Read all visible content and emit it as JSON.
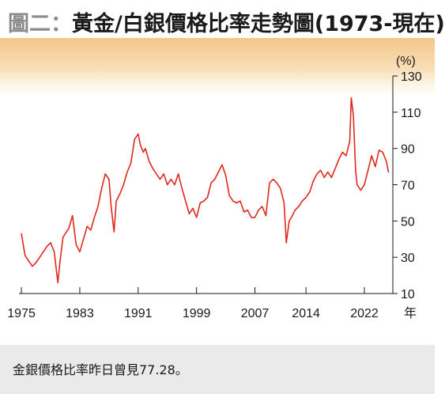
{
  "header": {
    "title_prefix": "圖二",
    "title_colon": "：",
    "title_main": "黃金/白銀價格比率走勢圖(1973-現在)"
  },
  "footnote": "金銀價格比率昨日曾見77.28。",
  "colors": {
    "line": "#e0281e",
    "band_top": "#f3c78a",
    "band_bottom": "#fdf1dc",
    "footer_bg": "#eaeaea"
  },
  "chart_data": {
    "type": "line",
    "ylabel": "(%)",
    "xunit": "年",
    "ylim": [
      10,
      130
    ],
    "yticks": [
      10,
      30,
      50,
      70,
      90,
      110,
      130
    ],
    "xlim": [
      1973.8,
      2025.9
    ],
    "xticks": [
      1975,
      1983,
      1991,
      1999,
      2007,
      2014,
      2022
    ],
    "grid": false,
    "series": [
      {
        "x": [
          1975.0,
          1975.5,
          1976.0,
          1976.5,
          1977.0,
          1977.5,
          1978.0,
          1978.5,
          1979.0,
          1979.5,
          1980.0,
          1980.3,
          1980.7,
          1981.0,
          1981.5,
          1982.0,
          1982.5,
          1983.0,
          1983.5,
          1984.0,
          1984.5,
          1985.0,
          1985.5,
          1986.0,
          1986.5,
          1987.0,
          1987.3,
          1987.7,
          1988.0,
          1988.5,
          1989.0,
          1989.5,
          1990.0,
          1990.5,
          1991.0,
          1991.3,
          1991.7,
          1992.0,
          1992.5,
          1993.0,
          1993.5,
          1994.0,
          1994.5,
          1995.0,
          1995.5,
          1996.0,
          1996.5,
          1997.0,
          1997.5,
          1998.0,
          1998.5,
          1999.0,
          1999.5,
          2000.0,
          2000.5,
          2001.0,
          2001.5,
          2002.0,
          2002.5,
          2003.0,
          2003.5,
          2004.0,
          2004.5,
          2005.0,
          2005.5,
          2006.0,
          2006.5,
          2007.0,
          2007.5,
          2008.0,
          2008.5,
          2009.0,
          2009.5,
          2010.0,
          2010.5,
          2011.0,
          2011.3,
          2011.7,
          2012.0,
          2012.5,
          2013.0,
          2013.5,
          2014.0,
          2014.5,
          2015.0,
          2015.5,
          2016.0,
          2016.5,
          2017.0,
          2017.5,
          2018.0,
          2018.5,
          2019.0,
          2019.5,
          2020.0,
          2020.2,
          2020.5,
          2020.8,
          2021.0,
          2021.5,
          2022.0,
          2022.5,
          2023.0,
          2023.5,
          2024.0,
          2024.5,
          2025.0,
          2025.3
        ],
        "values": [
          43,
          31,
          28,
          25,
          27,
          30,
          33,
          36,
          38,
          33,
          16,
          28,
          41,
          43,
          46,
          53,
          37,
          33,
          40,
          47,
          45,
          52,
          58,
          68,
          76,
          73,
          58,
          44,
          61,
          65,
          70,
          77,
          82,
          95,
          98,
          92,
          88,
          90,
          83,
          79,
          76,
          73,
          76,
          70,
          73,
          70,
          76,
          68,
          61,
          54,
          57,
          52,
          60,
          61,
          63,
          71,
          73,
          77,
          81,
          75,
          64,
          61,
          60,
          61,
          55,
          56,
          52,
          52,
          56,
          58,
          53,
          71,
          73,
          71,
          68,
          60,
          38,
          50,
          52,
          56,
          58,
          61,
          63,
          66,
          72,
          76,
          78,
          74,
          77,
          74,
          79,
          84,
          88,
          86,
          94,
          118,
          108,
          78,
          70,
          67,
          70,
          78,
          86,
          80,
          89,
          88,
          83,
          77
        ]
      }
    ]
  }
}
